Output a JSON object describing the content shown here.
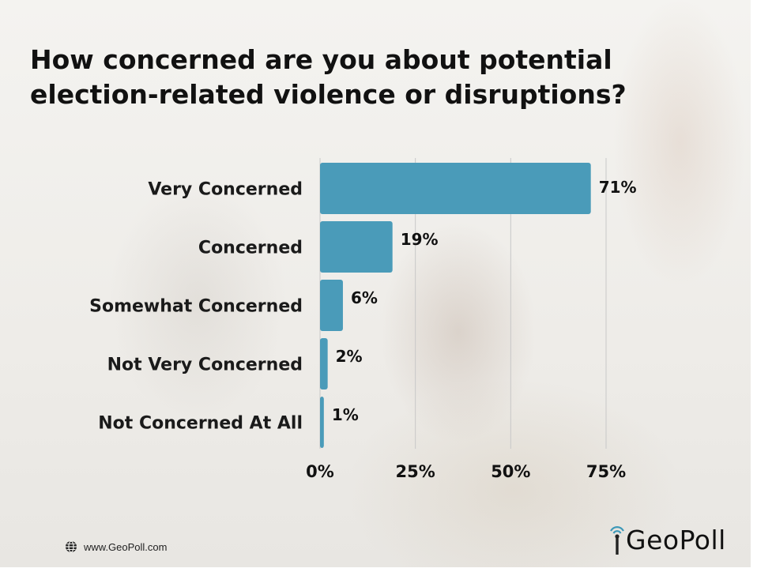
{
  "title": "How concerned are you about potential election-related violence or disruptions?",
  "footer": {
    "url": "www.GeoPoll.com",
    "icon": "globe-icon"
  },
  "brand": {
    "logo_text": "GeoPoll",
    "accent": "#3c98b8"
  },
  "colors": {
    "bar": "#4a9bb9",
    "grid": "#c8c8c8"
  },
  "chart_data": {
    "type": "bar",
    "orientation": "horizontal",
    "title": "How concerned are you about potential election-related violence or disruptions?",
    "categories": [
      "Very Concerned",
      "Concerned",
      "Somewhat Concerned",
      "Not Very Concerned",
      "Not Concerned At All"
    ],
    "values": [
      71,
      19,
      6,
      2,
      1
    ],
    "value_labels": [
      "71%",
      "19%",
      "6%",
      "2%",
      "1%"
    ],
    "x_ticks": [
      0,
      25,
      50,
      75
    ],
    "x_tick_labels": [
      "0%",
      "25%",
      "50%",
      "75%"
    ],
    "xlim": [
      0,
      75
    ],
    "grid": true,
    "legend": "none"
  }
}
